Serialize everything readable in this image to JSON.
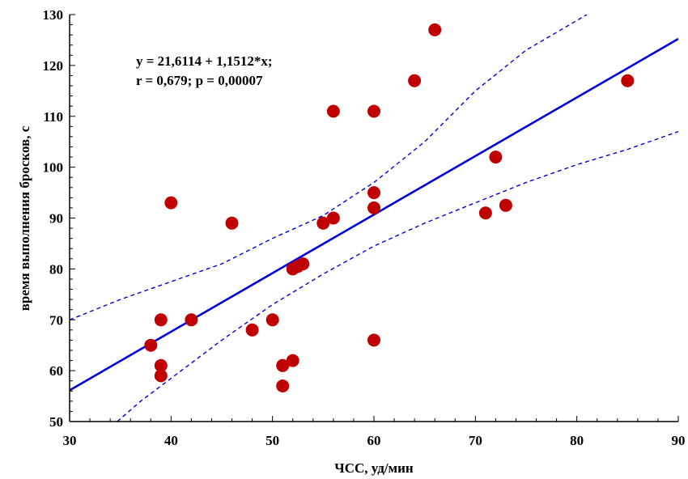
{
  "chart_data": {
    "type": "scatter",
    "title": "",
    "xlabel": "ЧСС, уд/мин",
    "ylabel": "время выполнения бросков, с",
    "xlim": [
      30,
      90
    ],
    "ylim": [
      50,
      130
    ],
    "xticks": [
      30,
      40,
      50,
      60,
      70,
      80,
      90
    ],
    "yticks": [
      50,
      60,
      70,
      80,
      90,
      100,
      110,
      120,
      130
    ],
    "grid": false,
    "legend": "none",
    "annotation_lines": [
      "y = 21,6114 + 1,1512*x;",
      "r = 0,679; p = 0,00007"
    ],
    "regression": {
      "intercept": 21.6114,
      "slope": 1.1512
    },
    "confidence_band": {
      "upper": [
        [
          30,
          70
        ],
        [
          35,
          74
        ],
        [
          40,
          77.5
        ],
        [
          45,
          81
        ],
        [
          50,
          86
        ],
        [
          55,
          90.5
        ],
        [
          60,
          97
        ],
        [
          65,
          105
        ],
        [
          70,
          115
        ],
        [
          75,
          123
        ],
        [
          81,
          130
        ]
      ],
      "lower": [
        [
          34.7,
          50
        ],
        [
          37,
          54
        ],
        [
          40,
          58.5
        ],
        [
          45,
          66
        ],
        [
          50,
          73
        ],
        [
          55,
          79
        ],
        [
          60,
          84.5
        ],
        [
          65,
          89
        ],
        [
          70,
          93
        ],
        [
          75,
          97
        ],
        [
          80,
          100.5
        ],
        [
          85,
          103.5
        ],
        [
          90,
          107
        ]
      ]
    },
    "points": [
      {
        "x": 38,
        "y": 65
      },
      {
        "x": 39,
        "y": 70
      },
      {
        "x": 39,
        "y": 61
      },
      {
        "x": 39,
        "y": 59
      },
      {
        "x": 40,
        "y": 93
      },
      {
        "x": 42,
        "y": 70
      },
      {
        "x": 46,
        "y": 89
      },
      {
        "x": 48,
        "y": 68
      },
      {
        "x": 50,
        "y": 70
      },
      {
        "x": 51,
        "y": 61
      },
      {
        "x": 51,
        "y": 57
      },
      {
        "x": 52,
        "y": 62
      },
      {
        "x": 52,
        "y": 80
      },
      {
        "x": 52.5,
        "y": 80.5
      },
      {
        "x": 53,
        "y": 81
      },
      {
        "x": 55,
        "y": 89
      },
      {
        "x": 56,
        "y": 90
      },
      {
        "x": 56,
        "y": 111
      },
      {
        "x": 60,
        "y": 111
      },
      {
        "x": 60,
        "y": 95
      },
      {
        "x": 60,
        "y": 92
      },
      {
        "x": 60,
        "y": 66
      },
      {
        "x": 64,
        "y": 117
      },
      {
        "x": 66,
        "y": 127
      },
      {
        "x": 71,
        "y": 91
      },
      {
        "x": 72,
        "y": 102
      },
      {
        "x": 73,
        "y": 92.5
      },
      {
        "x": 85,
        "y": 117
      }
    ],
    "colors": {
      "points": "#c00000",
      "regression": "#0000dd",
      "band": "#0000dd",
      "axes": "#000000"
    }
  }
}
